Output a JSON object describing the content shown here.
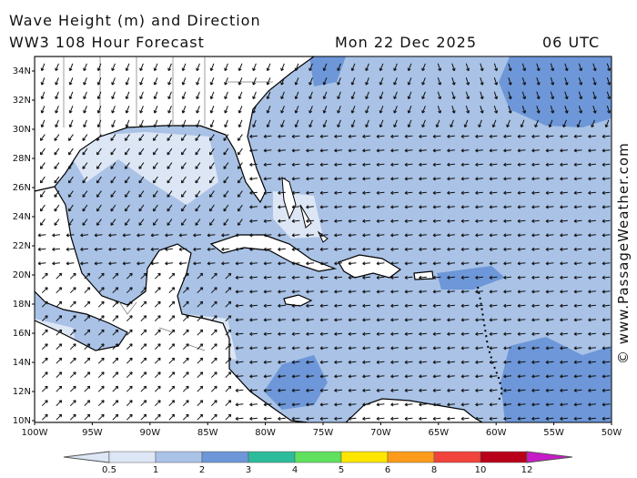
{
  "header": {
    "title": "Wave Height (m) and Direction",
    "model": "WW3 108 Hour Forecast",
    "date": "Mon 22 Dec 2025",
    "time": "06 UTC"
  },
  "credit": "© www.PassageWeather.com",
  "axes": {
    "lat_labels": [
      "34N",
      "32N",
      "30N",
      "28N",
      "26N",
      "24N",
      "22N",
      "20N",
      "18N",
      "16N",
      "14N",
      "12N",
      "10N"
    ],
    "lon_labels": [
      "100W",
      "95W",
      "90W",
      "85W",
      "80W",
      "75W",
      "70W",
      "65W",
      "60W",
      "55W",
      "50W"
    ]
  },
  "legend": {
    "labels": [
      "0.5",
      "1",
      "2",
      "3",
      "4",
      "5",
      "6",
      "8",
      "10",
      "12"
    ],
    "colors": [
      "#dde6f5",
      "#a9c2e6",
      "#6d97d8",
      "#2dbc9b",
      "#5fe05f",
      "#ffe600",
      "#ff9b1a",
      "#f0443c",
      "#b8001a",
      "#c81bc8"
    ]
  },
  "colors": {
    "sea_light": "#dde6f5",
    "sea_mid": "#a9c2e6",
    "sea_dark": "#6d97d8",
    "land": "#ffffff"
  }
}
